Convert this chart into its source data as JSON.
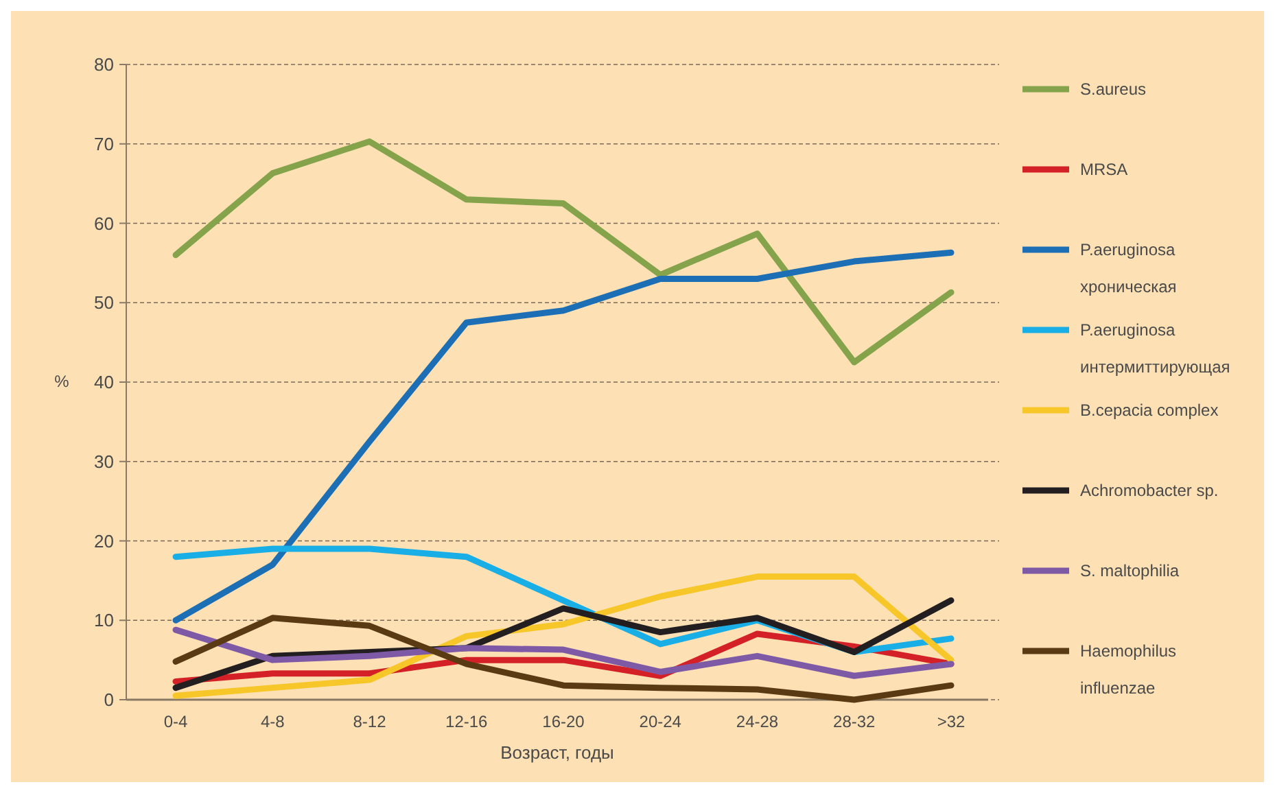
{
  "chart_data": {
    "type": "line",
    "xlabel": "Возраст, годы",
    "ylabel": "%",
    "categories": [
      "0-4",
      "4-8",
      "8-12",
      "12-16",
      "16-20",
      "20-24",
      "24-28",
      "28-32",
      ">32"
    ],
    "ylim": [
      0,
      80
    ],
    "yticks": [
      0,
      10,
      20,
      30,
      40,
      50,
      60,
      70,
      80
    ],
    "grid": "y",
    "legend": "right",
    "line_style": "solid",
    "marker": "none",
    "series": [
      {
        "name": "S.aureus",
        "color": "#84a34a",
        "values": [
          56,
          66.3,
          70.3,
          63,
          62.5,
          53.5,
          58.7,
          42.5,
          51.3
        ]
      },
      {
        "name": "MRSA",
        "color": "#d42027",
        "values": [
          2.3,
          3.3,
          3.3,
          5,
          5,
          3,
          8.3,
          6.7,
          4.5
        ]
      },
      {
        "name": "P.aeruginosa хроническая",
        "color": "#1c6fb5",
        "values": [
          10,
          17,
          32.5,
          47.5,
          49,
          53,
          53,
          55.2,
          56.3
        ]
      },
      {
        "name": "P.aeruginosa интермиттирующая",
        "color": "#1aaee6",
        "values": [
          18,
          19,
          19,
          18,
          12.5,
          7,
          10,
          6,
          7.7
        ]
      },
      {
        "name": "B.cepacia complex",
        "color": "#f7c629",
        "values": [
          0.5,
          1.5,
          2.5,
          8,
          9.5,
          13,
          15.5,
          15.5,
          5
        ]
      },
      {
        "name": "Achromobacter sp.",
        "color": "#231f20",
        "values": [
          1.5,
          5.5,
          6,
          6.5,
          11.5,
          8.5,
          10.3,
          6,
          12.5
        ]
      },
      {
        "name": "S. maltophilia",
        "color": "#7e5aa6",
        "values": [
          8.8,
          5,
          5.5,
          6.5,
          6.3,
          3.5,
          5.5,
          3,
          4.5
        ]
      },
      {
        "name": "Haemophilus influenzae",
        "color": "#5a3a12",
        "values": [
          4.8,
          10.3,
          9.3,
          4.5,
          1.8,
          1.5,
          1.3,
          0,
          1.8
        ]
      }
    ]
  }
}
